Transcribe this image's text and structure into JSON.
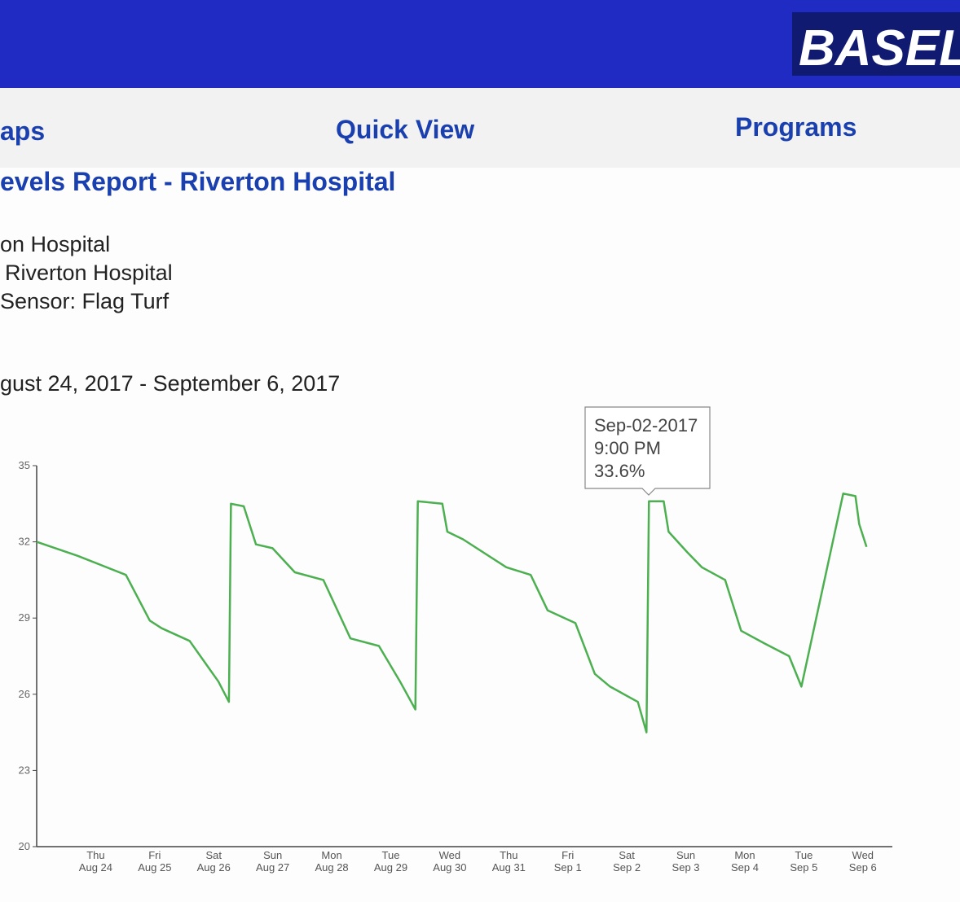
{
  "header": {
    "logo": "BASEL"
  },
  "nav": [
    "aps",
    "Quick View",
    "Programs"
  ],
  "report_title": "evels Report - Riverton Hospital",
  "info": [
    "on Hospital",
    "Riverton Hospital",
    "Sensor: Flag Turf"
  ],
  "date_range": "gust 24, 2017 - September 6, 2017",
  "tooltip": {
    "date": "Sep-02-2017",
    "time": "9:00 PM",
    "value": "33.6%"
  },
  "chart_data": {
    "type": "line",
    "color": "#4caf50",
    "categories": [
      "Aug 24",
      "Aug 25",
      "Aug 26",
      "Aug 27",
      "Aug 28",
      "Aug 29",
      "Aug 30",
      "Aug 31",
      "Sep 1",
      "Sep 2",
      "Sep 3",
      "Sep 4",
      "Sep 5",
      "Sep 6"
    ],
    "weekdays": [
      "Thu",
      "Fri",
      "Sat",
      "Sun",
      "Mon",
      "Tue",
      "Wed",
      "Thu",
      "Fri",
      "Sat",
      "Sun",
      "Mon",
      "Tue",
      "Wed"
    ],
    "x": [
      -12,
      4.7,
      24.3,
      34,
      38.8,
      50.2,
      61.9,
      66.2,
      67,
      72.2,
      77.2,
      83.9,
      93,
      104.6,
      115.6,
      127.2,
      135.8,
      142,
      143,
      153,
      155,
      161.4,
      179,
      188.9,
      195.8,
      207.1,
      215,
      221.2,
      232.5,
      236,
      237,
      243,
      245,
      252.5,
      258.5,
      268,
      274.5,
      284,
      294,
      299,
      316,
      321,
      322.5,
      325.5
    ],
    "values": [
      32,
      31.45,
      30.7,
      28.9,
      28.6,
      28.1,
      26.5,
      25.7,
      33.5,
      33.4,
      31.9,
      31.75,
      30.8,
      30.5,
      28.2,
      27.9,
      26.5,
      25.4,
      33.6,
      33.5,
      32.4,
      32.1,
      31,
      30.7,
      29.3,
      28.8,
      26.8,
      26.3,
      25.7,
      24.5,
      33.6,
      33.6,
      32.4,
      31.6,
      31,
      30.5,
      28.5,
      28,
      27.5,
      26.3,
      33.9,
      33.8,
      32.7,
      31.8
    ],
    "xlim": [
      -12,
      336
    ],
    "ylim": [
      20,
      35
    ],
    "yticks": [
      20,
      23,
      26,
      29,
      32,
      35
    ]
  }
}
